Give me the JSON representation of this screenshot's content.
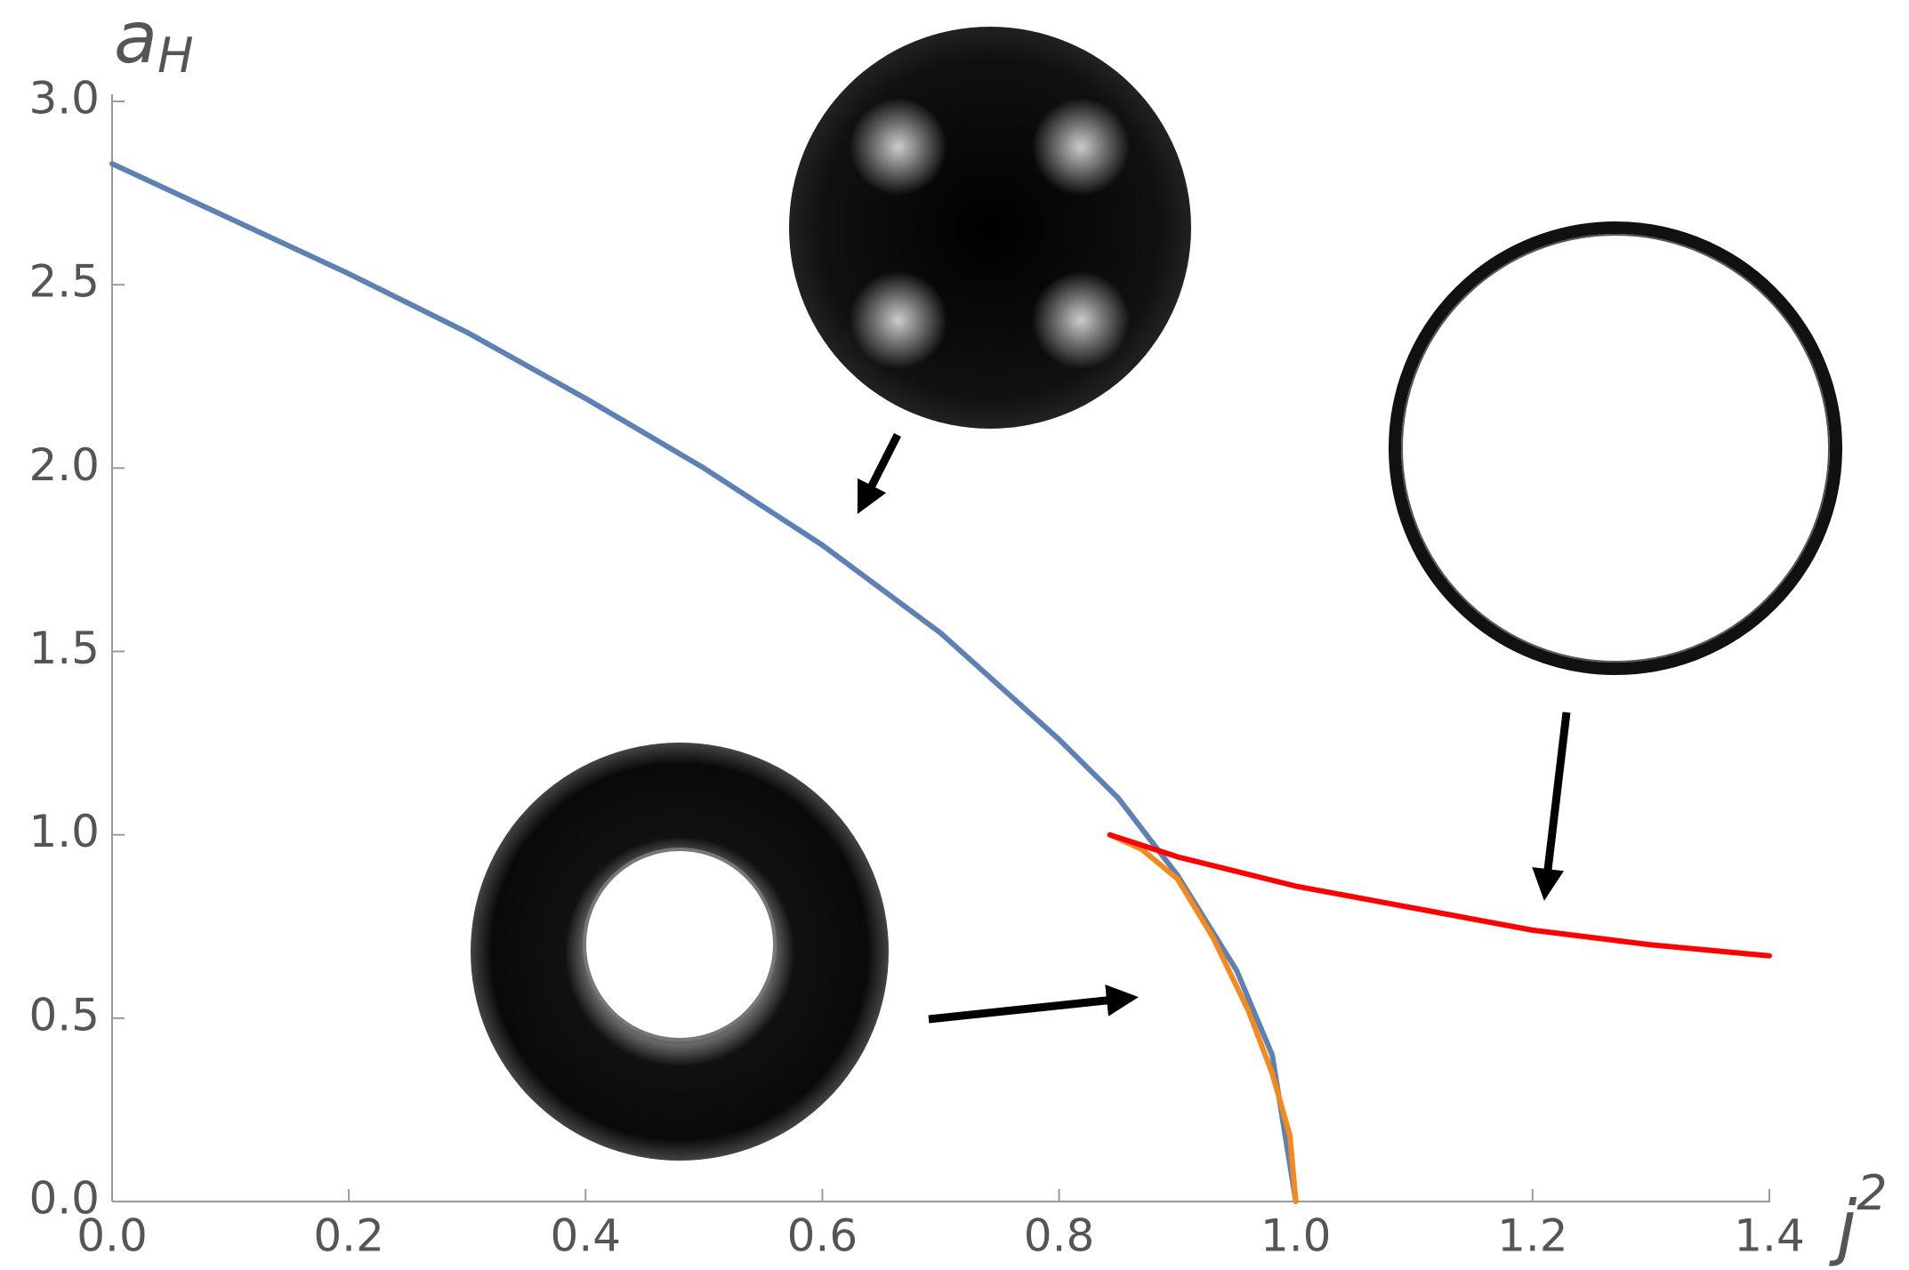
{
  "chart_data": {
    "type": "line",
    "y_label": "a",
    "y_label_sub": "H",
    "x_label": "j",
    "x_label_sup": "2",
    "xlim": [
      0,
      1.4
    ],
    "ylim": [
      0,
      3.0
    ],
    "xticks": [
      {
        "value": 0,
        "label": "0.0"
      },
      0.2,
      0.4,
      0.6,
      0.8,
      {
        "value": 1,
        "label": "1.0"
      },
      1.2,
      1.4
    ],
    "yticks": [
      {
        "value": 0,
        "label": "0.0"
      },
      0.5,
      {
        "value": 1,
        "label": "1.0"
      },
      1.5,
      {
        "value": 2,
        "label": "2.0"
      },
      2.5,
      {
        "value": 3,
        "label": "3.0"
      }
    ],
    "series": [
      {
        "color": "#5e81b5",
        "x": [
          0,
          0.1,
          0.2,
          0.3,
          0.4,
          0.5,
          0.6,
          0.7,
          0.8,
          0.85,
          0.9,
          0.95,
          0.98,
          1.0
        ],
        "values": [
          2.83,
          2.68,
          2.53,
          2.37,
          2.19,
          2.0,
          1.79,
          1.55,
          1.26,
          1.1,
          0.89,
          0.63,
          0.4,
          0
        ]
      },
      {
        "color": "#f5891e",
        "x": [
          0.843,
          0.87,
          0.9,
          0.93,
          0.96,
          0.98,
          0.995,
          1.0
        ],
        "values": [
          1.0,
          0.96,
          0.88,
          0.72,
          0.52,
          0.35,
          0.18,
          0
        ]
      },
      {
        "color": "#ff0000",
        "x": [
          0.843,
          0.9,
          1.0,
          1.1,
          1.2,
          1.3,
          1.4
        ],
        "values": [
          1.0,
          0.94,
          0.86,
          0.8,
          0.74,
          0.7,
          0.67
        ]
      }
    ]
  }
}
